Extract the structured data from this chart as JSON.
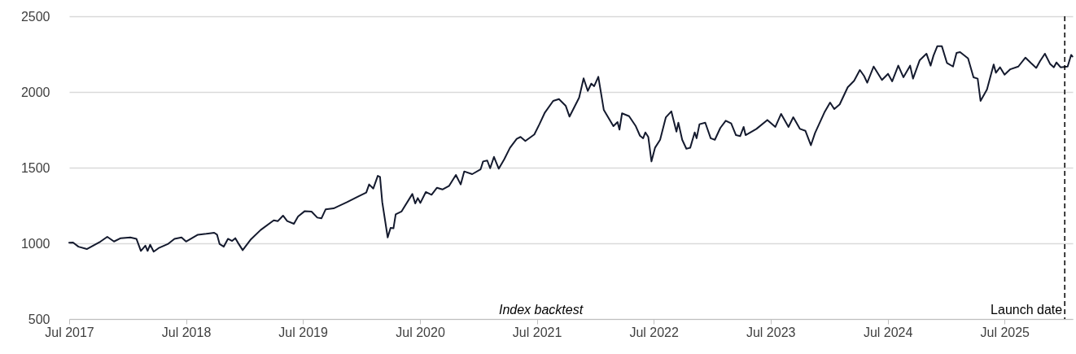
{
  "chart_data": {
    "type": "line",
    "x": [
      "2017-07-01",
      "2017-07-13",
      "2017-07-30",
      "2017-08-25",
      "2017-10-07",
      "2017-10-28",
      "2017-11-18",
      "2017-12-09",
      "2018-01-08",
      "2018-01-27",
      "2018-02-10",
      "2018-02-24",
      "2018-03-03",
      "2018-03-11",
      "2018-03-22",
      "2018-04-06",
      "2018-05-05",
      "2018-05-26",
      "2018-06-17",
      "2018-07-01",
      "2018-08-07",
      "2018-09-02",
      "2018-09-27",
      "2018-10-06",
      "2018-10-14",
      "2018-10-27",
      "2018-11-09",
      "2018-11-22",
      "2018-12-02",
      "2018-12-12",
      "2018-12-25",
      "2019-01-20",
      "2019-02-19",
      "2019-04-01",
      "2019-04-14",
      "2019-04-30",
      "2019-05-13",
      "2019-06-03",
      "2019-06-16",
      "2019-07-07",
      "2019-07-28",
      "2019-08-15",
      "2019-08-28",
      "2019-09-10",
      "2019-10-05",
      "2019-11-16",
      "2019-12-20",
      "2020-01-15",
      "2020-01-24",
      "2020-02-06",
      "2020-02-20",
      "2020-02-27",
      "2020-03-05",
      "2020-03-22",
      "2020-03-31",
      "2020-04-09",
      "2020-04-16",
      "2020-05-04",
      "2020-06-07",
      "2020-06-16",
      "2020-06-24",
      "2020-07-02",
      "2020-07-19",
      "2020-08-06",
      "2020-08-23",
      "2020-09-09",
      "2020-09-30",
      "2020-10-21",
      "2020-11-05",
      "2020-11-16",
      "2020-12-11",
      "2021-01-06",
      "2021-01-14",
      "2021-01-27",
      "2021-02-05",
      "2021-02-17",
      "2021-03-04",
      "2021-03-21",
      "2021-04-08",
      "2021-04-29",
      "2021-05-11",
      "2021-05-26",
      "2021-06-23",
      "2021-07-09",
      "2021-07-26",
      "2021-08-21",
      "2021-09-08",
      "2021-09-29",
      "2021-10-11",
      "2021-11-10",
      "2021-11-24",
      "2021-12-07",
      "2021-12-18",
      "2021-12-27",
      "2022-01-09",
      "2022-01-26",
      "2022-02-25",
      "2022-03-10",
      "2022-03-16",
      "2022-03-24",
      "2022-04-15",
      "2022-05-06",
      "2022-05-19",
      "2022-05-29",
      "2022-06-05",
      "2022-06-14",
      "2022-06-24",
      "2022-07-05",
      "2022-07-21",
      "2022-08-08",
      "2022-08-25",
      "2022-09-10",
      "2022-09-16",
      "2022-09-28",
      "2022-10-11",
      "2022-10-23",
      "2022-11-06",
      "2022-11-12",
      "2022-11-21",
      "2022-12-09",
      "2022-12-26",
      "2023-01-08",
      "2023-01-25",
      "2023-02-11",
      "2023-02-28",
      "2023-03-15",
      "2023-03-28",
      "2023-04-08",
      "2023-04-14",
      "2023-05-18",
      "2023-06-21",
      "2023-07-16",
      "2023-08-03",
      "2023-08-26",
      "2023-09-10",
      "2023-10-01",
      "2023-10-18",
      "2023-11-04",
      "2023-11-17",
      "2023-12-16",
      "2024-01-03",
      "2024-01-16",
      "2024-02-02",
      "2024-02-27",
      "2024-03-18",
      "2024-04-05",
      "2024-04-18",
      "2024-04-28",
      "2024-05-18",
      "2024-06-13",
      "2024-07-02",
      "2024-07-15",
      "2024-08-03",
      "2024-08-19",
      "2024-09-09",
      "2024-09-18",
      "2024-10-09",
      "2024-10-30",
      "2024-11-12",
      "2024-11-21",
      "2024-12-03",
      "2024-12-17",
      "2025-01-02",
      "2025-01-21",
      "2025-02-01",
      "2025-02-12",
      "2025-03-09",
      "2025-03-26",
      "2025-04-08",
      "2025-04-17",
      "2025-05-07",
      "2025-05-28",
      "2025-06-04",
      "2025-06-17",
      "2025-07-01",
      "2025-07-19",
      "2025-08-13",
      "2025-09-04",
      "2025-09-21",
      "2025-10-08",
      "2025-10-20",
      "2025-11-04",
      "2025-11-20",
      "2025-12-02",
      "2025-12-10",
      "2025-12-23",
      "2026-01-14",
      "2026-01-25",
      "2026-01-29"
    ],
    "series": [
      {
        "color": "#141a2e",
        "values": [
          1004,
          1005,
          978,
          962,
          1012,
          1043,
          1012,
          1034,
          1039,
          1030,
          950,
          985,
          950,
          991,
          945,
          968,
          995,
          1030,
          1039,
          1012,
          1057,
          1063,
          1070,
          1057,
          995,
          978,
          1030,
          1016,
          1034,
          998,
          955,
          1027,
          1088,
          1152,
          1147,
          1183,
          1147,
          1129,
          1177,
          1213,
          1210,
          1170,
          1165,
          1224,
          1231,
          1272,
          1308,
          1335,
          1389,
          1362,
          1446,
          1439,
          1272,
          1039,
          1102,
          1099,
          1192,
          1210,
          1326,
          1263,
          1299,
          1267,
          1339,
          1321,
          1367,
          1356,
          1380,
          1452,
          1389,
          1475,
          1457,
          1488,
          1541,
          1547,
          1496,
          1571,
          1493,
          1555,
          1631,
          1690,
          1703,
          1676,
          1719,
          1787,
          1864,
          1941,
          1953,
          1909,
          1837,
          1962,
          2090,
          2007,
          2055,
          2038,
          2100,
          1882,
          1774,
          1801,
          1751,
          1859,
          1840,
          1774,
          1711,
          1694,
          1733,
          1703,
          1541,
          1631,
          1684,
          1833,
          1872,
          1738,
          1797,
          1684,
          1625,
          1631,
          1733,
          1694,
          1787,
          1797,
          1694,
          1684,
          1762,
          1810,
          1792,
          1715,
          1708,
          1769,
          1715,
          1756,
          1815,
          1769,
          1855,
          1769,
          1833,
          1756,
          1743,
          1648,
          1729,
          1864,
          1930,
          1887,
          1918,
          2031,
          2074,
          2145,
          2106,
          2061,
          2168,
          2079,
          2120,
          2070,
          2174,
          2097,
          2174,
          2088,
          2210,
          2253,
          2174,
          2240,
          2303,
          2303,
          2192,
          2168,
          2258,
          2263,
          2222,
          2097,
          2088,
          1941,
          2016,
          2181,
          2127,
          2163,
          2114,
          2150,
          2168,
          2227,
          2192,
          2159,
          2204,
          2253,
          2186,
          2163,
          2195,
          2163,
          2168,
          2245,
          2234
        ]
      }
    ],
    "xlim": [
      "2017-07-01",
      "2026-01-30"
    ],
    "xticks": [
      {
        "value": "2017-07-01",
        "label": "Jul 2017"
      },
      {
        "value": "2018-07-01",
        "label": "Jul 2018"
      },
      {
        "value": "2019-07-01",
        "label": "Jul 2019"
      },
      {
        "value": "2020-07-01",
        "label": "Jul 2020"
      },
      {
        "value": "2021-07-01",
        "label": "Jul 2021"
      },
      {
        "value": "2022-07-01",
        "label": "Jul 2022"
      },
      {
        "value": "2023-07-01",
        "label": "Jul 2023"
      },
      {
        "value": "2024-07-01",
        "label": "Jul 2024"
      },
      {
        "value": "2025-07-01",
        "label": "Jul 2025"
      }
    ],
    "ylim": [
      500,
      2500
    ],
    "yticks": [
      500,
      1000,
      1500,
      2000,
      2500
    ],
    "grid": "y",
    "line_style": "solid",
    "ref_lines": [
      {
        "axis": "x",
        "value": "2026-01-05",
        "label": "Launch date",
        "color": "#000000",
        "line_style": "dashed"
      }
    ],
    "annotations": [
      "Index backtest"
    ]
  }
}
